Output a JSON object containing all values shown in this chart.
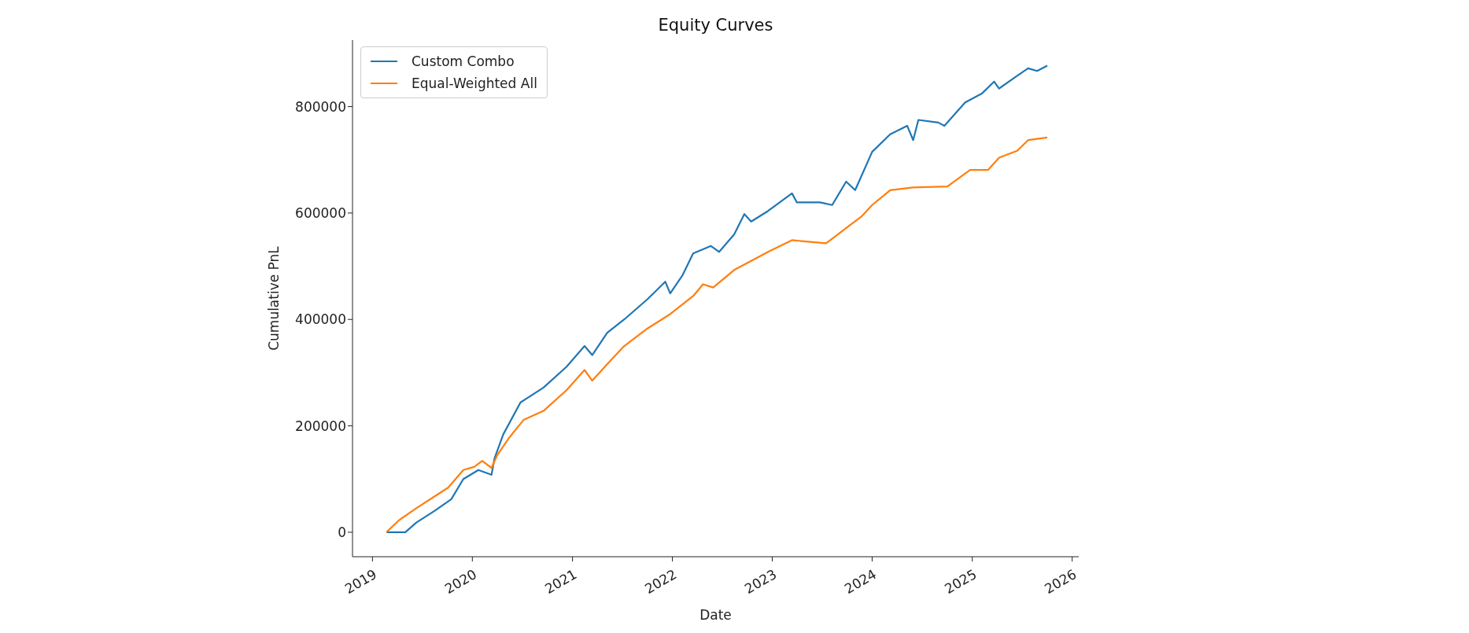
{
  "chart_data": {
    "type": "line",
    "title": "Equity Curves",
    "xlabel": "Date",
    "ylabel": "Cumulative PnL",
    "xlim": [
      "2018-10-20",
      "2026-01-25"
    ],
    "xticks": [
      {
        "value": "2019",
        "label": "2019"
      },
      {
        "value": "2020",
        "label": "2020"
      },
      {
        "value": "2021",
        "label": "2021"
      },
      {
        "value": "2022",
        "label": "2022"
      },
      {
        "value": "2023",
        "label": "2023"
      },
      {
        "value": "2024",
        "label": "2024"
      },
      {
        "value": "2025",
        "label": "2025"
      },
      {
        "value": "2026",
        "label": "2026"
      }
    ],
    "ylim": [
      -46000,
      925000
    ],
    "yticks": [
      0,
      200000,
      400000,
      600000,
      800000
    ],
    "grid": false,
    "legend": "top left",
    "series": [
      {
        "name": "Custom Combo",
        "color": "#1f77b4",
        "x": [
          "2019-02-21",
          "2019-05-01",
          "2019-06-10",
          "2019-08-15",
          "2019-10-16",
          "2019-11-29",
          "2020-01-23",
          "2020-03-11",
          "2020-03-22",
          "2020-04-23",
          "2020-06-25",
          "2020-09-17",
          "2020-12-10",
          "2021-02-14",
          "2021-03-14",
          "2021-05-08",
          "2021-07-09",
          "2021-10-02",
          "2021-12-06",
          "2021-12-24",
          "2022-02-06",
          "2022-03-18",
          "2022-05-22",
          "2022-06-21",
          "2022-08-15",
          "2022-09-21",
          "2022-10-16",
          "2022-12-17",
          "2023-03-14",
          "2023-04-01",
          "2023-06-25",
          "2023-08-08",
          "2023-09-28",
          "2023-10-31",
          "2024-01-01",
          "2024-03-07",
          "2024-05-08",
          "2024-05-30",
          "2024-06-18",
          "2024-08-30",
          "2024-09-21",
          "2024-12-06",
          "2025-02-06",
          "2025-03-22",
          "2025-04-09",
          "2025-06-14",
          "2025-07-24",
          "2025-08-26",
          "2025-10-02"
        ],
        "values": [
          0,
          0,
          18000,
          40000,
          62000,
          100000,
          117000,
          108000,
          139000,
          184000,
          244000,
          272000,
          311000,
          350000,
          333000,
          375000,
          400000,
          438000,
          471000,
          449000,
          482000,
          524000,
          538000,
          527000,
          560000,
          598000,
          584000,
          604000,
          637000,
          620000,
          620000,
          615000,
          659000,
          643000,
          715000,
          748000,
          764000,
          737000,
          775000,
          770000,
          764000,
          808000,
          825000,
          847000,
          834000,
          858000,
          872000,
          867000,
          877000
        ]
      },
      {
        "name": "Equal-Weighted All",
        "color": "#ff7f0e",
        "x": [
          "2019-02-21",
          "2019-04-09",
          "2019-06-10",
          "2019-08-15",
          "2019-10-05",
          "2019-11-29",
          "2020-01-08",
          "2020-02-06",
          "2020-03-11",
          "2020-04-01",
          "2020-05-15",
          "2020-07-06",
          "2020-09-17",
          "2020-12-10",
          "2021-02-14",
          "2021-03-14",
          "2021-05-08",
          "2021-07-09",
          "2021-10-02",
          "2021-12-24",
          "2022-03-18",
          "2022-04-23",
          "2022-05-30",
          "2022-08-15",
          "2022-10-16",
          "2022-12-17",
          "2023-03-14",
          "2023-07-17",
          "2023-10-09",
          "2023-11-22",
          "2024-01-01",
          "2024-03-07",
          "2024-05-30",
          "2024-10-02",
          "2024-12-24",
          "2025-02-28",
          "2025-04-09",
          "2025-06-14",
          "2025-07-24",
          "2025-10-02"
        ],
        "values": [
          0,
          23000,
          45000,
          67000,
          84000,
          117000,
          123000,
          134000,
          121000,
          145000,
          178000,
          211000,
          228000,
          267000,
          305000,
          285000,
          316000,
          350000,
          383000,
          410000,
          444000,
          466000,
          460000,
          493000,
          510000,
          527000,
          549000,
          543000,
          576000,
          593000,
          615000,
          643000,
          648000,
          650000,
          681000,
          681000,
          704000,
          717000,
          737000,
          742000
        ]
      }
    ]
  }
}
